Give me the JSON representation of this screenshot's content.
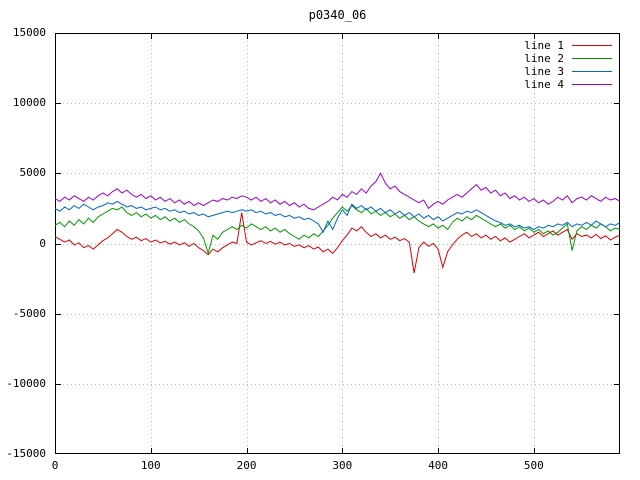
{
  "chart_data": {
    "type": "line",
    "title": "p0340_06",
    "xlabel": "",
    "ylabel": "",
    "xlim": [
      0,
      590
    ],
    "ylim": [
      -15000,
      15000
    ],
    "xticks": [
      0,
      100,
      200,
      300,
      400,
      500
    ],
    "yticks": [
      -15000,
      -10000,
      -5000,
      0,
      5000,
      10000,
      15000
    ],
    "grid": true,
    "grid_color": "#b8b8b8",
    "border_color": "#000000",
    "legend_position": "top-right-inside",
    "x_start": 0,
    "x_step": 5,
    "series": [
      {
        "name": "line 1",
        "color": "#dd0000",
        "values": [
          500,
          300,
          100,
          250,
          -100,
          50,
          -300,
          -150,
          -400,
          -100,
          200,
          400,
          700,
          1000,
          800,
          500,
          300,
          450,
          200,
          350,
          100,
          250,
          50,
          150,
          -50,
          100,
          -100,
          50,
          -200,
          0,
          -300,
          -500,
          -800,
          -400,
          -600,
          -300,
          -100,
          100,
          0,
          2200,
          100,
          -100,
          50,
          200,
          0,
          150,
          -50,
          100,
          -100,
          0,
          -200,
          -100,
          -300,
          -150,
          -400,
          -250,
          -600,
          -400,
          -700,
          -300,
          200,
          600,
          1100,
          900,
          1200,
          800,
          500,
          700,
          400,
          600,
          300,
          450,
          200,
          350,
          100,
          -2100,
          -300,
          100,
          -200,
          0,
          -400,
          -1700,
          -600,
          -100,
          300,
          600,
          800,
          500,
          700,
          400,
          600,
          300,
          500,
          200,
          400,
          100,
          300,
          500,
          700,
          400,
          600,
          800,
          500,
          700,
          900,
          600,
          800,
          1000,
          300,
          700,
          500,
          600,
          400,
          650,
          350,
          550,
          250,
          450,
          600
        ]
      },
      {
        "name": "line 2",
        "color": "#009900",
        "values": [
          1300,
          1500,
          1200,
          1600,
          1300,
          1700,
          1400,
          1800,
          1500,
          1900,
          2100,
          2300,
          2500,
          2400,
          2600,
          2200,
          2000,
          2200,
          1900,
          2100,
          1800,
          2000,
          1700,
          1900,
          1600,
          1800,
          1500,
          1700,
          1400,
          1200,
          900,
          400,
          -700,
          600,
          300,
          800,
          1000,
          1200,
          1000,
          1300,
          1100,
          1400,
          1200,
          1000,
          1200,
          900,
          1100,
          800,
          1000,
          700,
          500,
          300,
          600,
          400,
          700,
          500,
          900,
          1300,
          1800,
          2200,
          2600,
          2300,
          2700,
          2400,
          2200,
          2500,
          2100,
          2300,
          2000,
          2200,
          1900,
          2100,
          1800,
          2000,
          1700,
          1900,
          1600,
          1400,
          1200,
          1400,
          1100,
          1300,
          1000,
          1500,
          1800,
          1600,
          1900,
          1700,
          2000,
          1800,
          1600,
          1400,
          1200,
          1400,
          1100,
          1300,
          1000,
          1200,
          900,
          1100,
          800,
          1000,
          700,
          900,
          600,
          800,
          1100,
          1400,
          -500,
          900,
          1200,
          1000,
          1300,
          1100,
          1400,
          1200,
          900,
          1100,
          1000
        ]
      },
      {
        "name": "line 3",
        "color": "#0066cc",
        "values": [
          2500,
          2300,
          2600,
          2400,
          2700,
          2500,
          2800,
          2600,
          2400,
          2600,
          2700,
          2900,
          2800,
          3000,
          2800,
          2600,
          2700,
          2500,
          2600,
          2400,
          2500,
          2600,
          2400,
          2500,
          2300,
          2400,
          2200,
          2300,
          2100,
          2200,
          2000,
          2100,
          1900,
          2000,
          2100,
          2200,
          2300,
          2200,
          2300,
          2400,
          2300,
          2400,
          2200,
          2300,
          2100,
          2200,
          2000,
          2100,
          1900,
          2000,
          1800,
          1900,
          1700,
          1800,
          1600,
          1400,
          800,
          1600,
          1000,
          1800,
          2400,
          2000,
          2800,
          2500,
          2700,
          2400,
          2600,
          2300,
          2500,
          2200,
          2400,
          2100,
          2300,
          2000,
          2200,
          1900,
          2100,
          1800,
          2000,
          1700,
          1900,
          1600,
          1800,
          2000,
          2200,
          2100,
          2300,
          2200,
          2400,
          2200,
          2000,
          1800,
          1600,
          1500,
          1300,
          1400,
          1200,
          1300,
          1100,
          1200,
          1000,
          1200,
          1100,
          1300,
          1200,
          1400,
          1300,
          1500,
          1200,
          1400,
          1300,
          1500,
          1300,
          1600,
          1400,
          1200,
          1400,
          1300,
          1500
        ]
      },
      {
        "name": "line 4",
        "color": "#9900cc",
        "values": [
          3200,
          3000,
          3300,
          3100,
          3400,
          3200,
          3000,
          3300,
          3100,
          3400,
          3600,
          3400,
          3700,
          3900,
          3600,
          3800,
          3500,
          3300,
          3500,
          3200,
          3400,
          3100,
          3300,
          3000,
          3200,
          2900,
          3100,
          2800,
          3000,
          2700,
          2900,
          2700,
          2900,
          3100,
          3000,
          3200,
          3100,
          3300,
          3200,
          3400,
          3300,
          3100,
          3300,
          3000,
          3200,
          2900,
          3100,
          2800,
          3000,
          2700,
          2900,
          2600,
          2800,
          2500,
          2400,
          2600,
          2800,
          3000,
          3300,
          3100,
          3500,
          3300,
          3700,
          3500,
          3900,
          3600,
          4100,
          4400,
          5000,
          4300,
          3900,
          4100,
          3700,
          3500,
          3300,
          3100,
          2900,
          3100,
          2500,
          2800,
          3000,
          2800,
          3100,
          3300,
          3500,
          3300,
          3600,
          3900,
          4200,
          3800,
          4000,
          3600,
          3800,
          3400,
          3600,
          3200,
          3400,
          3100,
          3300,
          3000,
          3200,
          2900,
          3100,
          2800,
          3000,
          3300,
          3100,
          3400,
          2900,
          3200,
          3300,
          3100,
          3400,
          3200,
          3000,
          3300,
          3100,
          3200,
          3000
        ]
      }
    ]
  }
}
